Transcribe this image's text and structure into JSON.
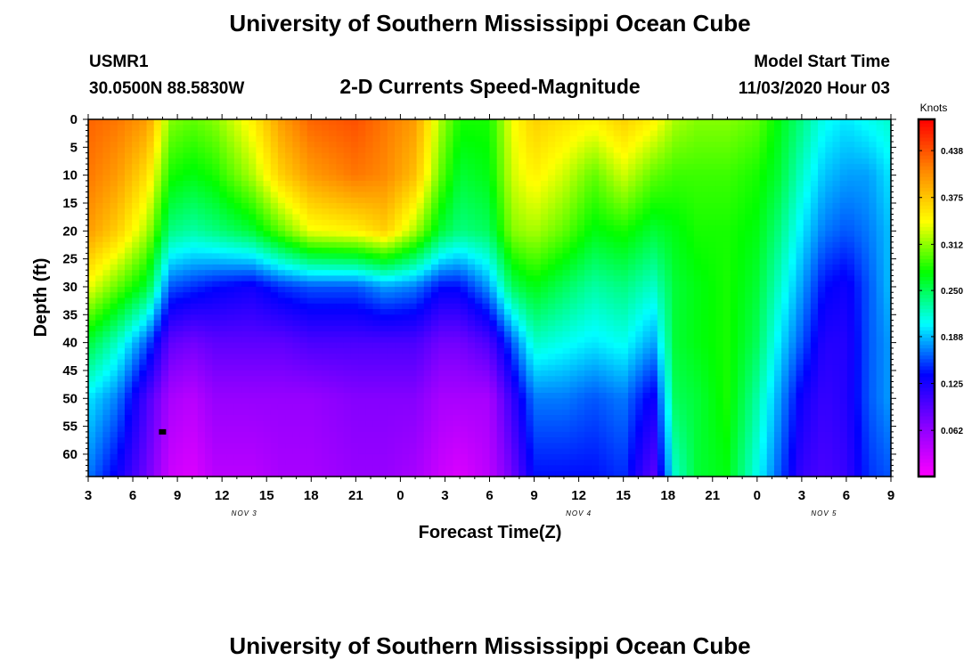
{
  "page": {
    "title_top": "University of Southern Mississippi Ocean Cube",
    "title_bottom": "University of Southern Mississippi Ocean Cube",
    "station_id": "USMR1",
    "station_coords": "30.0500N 88.5830W",
    "subtitle": "2-D Currents Speed-Magnitude",
    "model_label": "Model Start Time",
    "model_time": "11/03/2020 Hour 03"
  },
  "chart_data": {
    "type": "heatmap",
    "title": "2-D Currents Speed-Magnitude",
    "xlabel": "Forecast Time(Z)",
    "ylabel": "Depth (ft)",
    "x_hours_range": [
      0,
      54
    ],
    "x_tick_labels": [
      "3",
      "6",
      "9",
      "12",
      "15",
      "18",
      "21",
      "0",
      "3",
      "6",
      "9",
      "12",
      "15",
      "18",
      "21",
      "0",
      "3",
      "6",
      "9"
    ],
    "date_labels": [
      {
        "text": "NOV 3",
        "hour": 10.5
      },
      {
        "text": "NOV 4",
        "hour": 33
      },
      {
        "text": "NOV 5",
        "hour": 49.5
      }
    ],
    "y_ticks": [
      0,
      5,
      10,
      15,
      20,
      25,
      30,
      35,
      40,
      45,
      50,
      55,
      60
    ],
    "ylim": [
      0,
      64
    ],
    "colorbar": {
      "unit": "Knots",
      "range": [
        0,
        0.48
      ],
      "tick_values": [
        0.438,
        0.375,
        0.312,
        0.25,
        0.188,
        0.125,
        0.062
      ],
      "tick_labels": [
        "0.438",
        "0.375",
        "0.312",
        "0.250",
        "0.188",
        "0.125",
        "0.062"
      ]
    },
    "profile_columns": [
      {
        "hour": 0,
        "surface": 0.43,
        "d": [
          0.43,
          0.42,
          0.4,
          0.34,
          0.26,
          0.2,
          0.17
        ]
      },
      {
        "hour": 2,
        "surface": 0.42,
        "d": [
          0.42,
          0.4,
          0.37,
          0.3,
          0.22,
          0.17,
          0.13
        ]
      },
      {
        "hour": 4,
        "surface": 0.4,
        "d": [
          0.4,
          0.36,
          0.32,
          0.26,
          0.16,
          0.1,
          0.08
        ]
      },
      {
        "hour": 5.5,
        "surface": 0.32,
        "d": [
          0.31,
          0.28,
          0.24,
          0.16,
          0.09,
          0.05,
          0.03
        ]
      },
      {
        "hour": 7,
        "surface": 0.31,
        "d": [
          0.3,
          0.27,
          0.23,
          0.15,
          0.08,
          0.04,
          0.02
        ]
      },
      {
        "hour": 8.5,
        "surface": 0.32,
        "d": [
          0.31,
          0.28,
          0.24,
          0.14,
          0.09,
          0.06,
          0.04
        ]
      },
      {
        "hour": 11,
        "surface": 0.37,
        "d": [
          0.35,
          0.32,
          0.26,
          0.13,
          0.09,
          0.06,
          0.04
        ]
      },
      {
        "hour": 13,
        "surface": 0.4,
        "d": [
          0.4,
          0.37,
          0.3,
          0.15,
          0.09,
          0.06,
          0.05
        ]
      },
      {
        "hour": 15,
        "surface": 0.44,
        "d": [
          0.43,
          0.4,
          0.34,
          0.16,
          0.1,
          0.06,
          0.05
        ]
      },
      {
        "hour": 18,
        "surface": 0.45,
        "d": [
          0.44,
          0.42,
          0.35,
          0.16,
          0.1,
          0.07,
          0.06
        ]
      },
      {
        "hour": 20,
        "surface": 0.43,
        "d": [
          0.42,
          0.41,
          0.37,
          0.18,
          0.1,
          0.07,
          0.06
        ]
      },
      {
        "hour": 22,
        "surface": 0.42,
        "d": [
          0.4,
          0.38,
          0.32,
          0.17,
          0.1,
          0.07,
          0.05
        ]
      },
      {
        "hour": 23.7,
        "surface": 0.34,
        "d": [
          0.32,
          0.3,
          0.26,
          0.14,
          0.08,
          0.05,
          0.03
        ]
      },
      {
        "hour": 25,
        "surface": 0.29,
        "d": [
          0.28,
          0.26,
          0.24,
          0.14,
          0.08,
          0.05,
          0.02
        ]
      },
      {
        "hour": 27,
        "surface": 0.28,
        "d": [
          0.28,
          0.27,
          0.25,
          0.18,
          0.1,
          0.05,
          0.04
        ]
      },
      {
        "hour": 28.5,
        "surface": 0.33,
        "d": [
          0.34,
          0.33,
          0.31,
          0.25,
          0.16,
          0.11,
          0.08
        ]
      },
      {
        "hour": 30,
        "surface": 0.37,
        "d": [
          0.37,
          0.35,
          0.32,
          0.27,
          0.22,
          0.17,
          0.14
        ]
      },
      {
        "hour": 32,
        "surface": 0.38,
        "d": [
          0.36,
          0.33,
          0.3,
          0.25,
          0.21,
          0.17,
          0.14
        ]
      },
      {
        "hour": 34,
        "surface": 0.38,
        "d": [
          0.35,
          0.3,
          0.27,
          0.23,
          0.2,
          0.16,
          0.14
        ]
      },
      {
        "hour": 36,
        "surface": 0.39,
        "d": [
          0.37,
          0.33,
          0.28,
          0.24,
          0.21,
          0.17,
          0.15
        ]
      },
      {
        "hour": 38,
        "surface": 0.37,
        "d": [
          0.35,
          0.3,
          0.26,
          0.22,
          0.18,
          0.13,
          0.09
        ]
      },
      {
        "hour": 39.5,
        "surface": 0.34,
        "d": [
          0.32,
          0.29,
          0.27,
          0.26,
          0.26,
          0.25,
          0.22
        ]
      },
      {
        "hour": 41,
        "surface": 0.33,
        "d": [
          0.31,
          0.29,
          0.28,
          0.27,
          0.27,
          0.26,
          0.26
        ]
      },
      {
        "hour": 43,
        "surface": 0.34,
        "d": [
          0.31,
          0.29,
          0.28,
          0.28,
          0.28,
          0.28,
          0.27
        ]
      },
      {
        "hour": 45,
        "surface": 0.32,
        "d": [
          0.3,
          0.28,
          0.27,
          0.26,
          0.25,
          0.23,
          0.21
        ]
      },
      {
        "hour": 46.5,
        "surface": 0.28,
        "d": [
          0.27,
          0.26,
          0.24,
          0.22,
          0.2,
          0.18,
          0.16
        ]
      },
      {
        "hour": 48,
        "surface": 0.26,
        "d": [
          0.24,
          0.22,
          0.2,
          0.18,
          0.16,
          0.13,
          0.11
        ]
      },
      {
        "hour": 49.5,
        "surface": 0.23,
        "d": [
          0.21,
          0.19,
          0.17,
          0.14,
          0.12,
          0.11,
          0.1
        ]
      },
      {
        "hour": 51,
        "surface": 0.22,
        "d": [
          0.2,
          0.18,
          0.16,
          0.13,
          0.12,
          0.12,
          0.11
        ]
      },
      {
        "hour": 52.5,
        "surface": 0.24,
        "d": [
          0.21,
          0.18,
          0.17,
          0.16,
          0.16,
          0.16,
          0.15
        ]
      },
      {
        "hour": 54,
        "surface": 0.24,
        "d": [
          0.22,
          0.2,
          0.19,
          0.19,
          0.18,
          0.18,
          0.16
        ]
      }
    ],
    "profile_depths": [
      0,
      10,
      20,
      30,
      40,
      50,
      64
    ],
    "marker": {
      "hour": 5,
      "depth": 56
    }
  },
  "colors": {
    "colormap": [
      "#ff00ff",
      "#8800ff",
      "#0000ff",
      "#00ffff",
      "#00ff00",
      "#ffff00",
      "#ff8800",
      "#ff0000"
    ],
    "frame": "#000000"
  }
}
